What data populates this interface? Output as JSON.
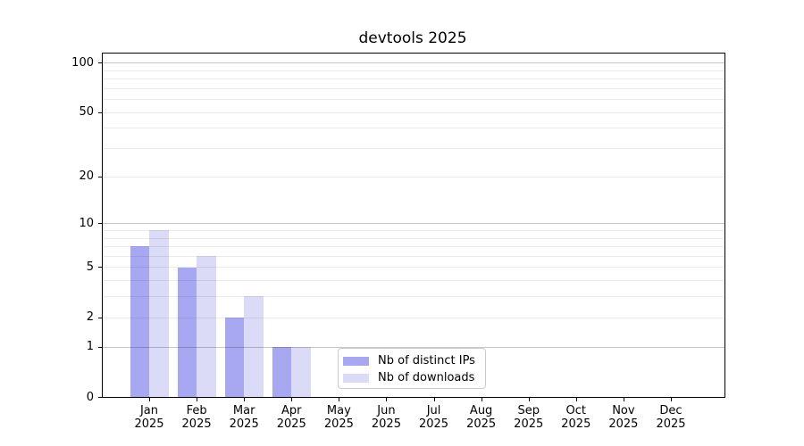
{
  "chart_data": {
    "type": "bar",
    "title": "devtools 2025",
    "categories": [
      "Jan",
      "Feb",
      "Mar",
      "Apr",
      "May",
      "Jun",
      "Jul",
      "Aug",
      "Sep",
      "Oct",
      "Nov",
      "Dec"
    ],
    "category_sublabel": "2025",
    "series": [
      {
        "name": "Nb of distinct IPs",
        "color": "#a8a8f2",
        "values": [
          7,
          5,
          2,
          1,
          0,
          0,
          0,
          0,
          0,
          0,
          0,
          0
        ]
      },
      {
        "name": "Nb of downloads",
        "color": "#dbdbf8",
        "values": [
          9,
          6,
          3,
          1,
          0,
          0,
          0,
          0,
          0,
          0,
          0,
          0
        ]
      }
    ],
    "xlabel": "",
    "ylabel": "",
    "y_scale": "log10(1+x)",
    "y_ticks": [
      0,
      1,
      2,
      5,
      10,
      20,
      50,
      100
    ],
    "y_major_gridlines": [
      1,
      10,
      100
    ],
    "y_minor_gridlines": [
      2,
      3,
      4,
      5,
      6,
      7,
      8,
      9,
      20,
      30,
      40,
      50,
      60,
      70,
      80,
      90
    ],
    "ylim": [
      0,
      112
    ],
    "grid": true,
    "legend_position": "inside lower-center"
  }
}
